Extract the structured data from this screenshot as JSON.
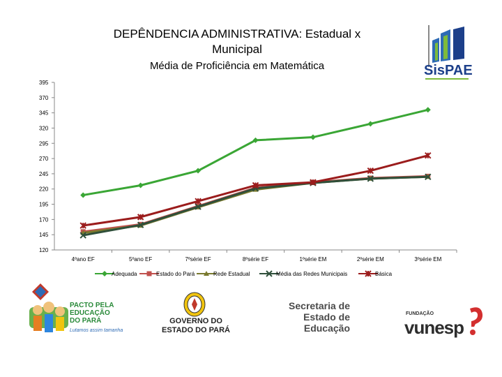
{
  "chart_data": {
    "type": "line",
    "title": "DEPÊNDENCIA ADMINISTRATIVA: Estadual x Municipal",
    "subtitle": "Média de Proficiência em Matemática",
    "categories": [
      "4ºano EF",
      "5ºano EF",
      "7ºsérie EF",
      "8ºsérie EF",
      "1ºsérie EM",
      "2ºsérie EM",
      "3ºsérie EM"
    ],
    "y_ticks": [
      120,
      145,
      170,
      195,
      220,
      245,
      270,
      295,
      320,
      345,
      370,
      395
    ],
    "ylim": [
      120,
      395
    ],
    "series": [
      {
        "name": "Adequada",
        "color": "#3aa635",
        "marker": "diamond",
        "values": [
          210,
          226,
          250,
          300,
          305,
          327,
          350
        ]
      },
      {
        "name": "Estado do Pará",
        "color": "#c0504d",
        "marker": "square",
        "values": [
          150,
          162,
          192,
          222,
          231,
          238,
          241
        ]
      },
      {
        "name": "Rede Estadual",
        "color": "#7a7a2e",
        "marker": "triangle",
        "values": [
          148,
          160,
          190,
          219,
          230,
          237,
          240
        ]
      },
      {
        "name": "Média das Redes Municipais",
        "color": "#2f4f3a",
        "marker": "x",
        "values": [
          144,
          161,
          191,
          221,
          230,
          237,
          240
        ]
      },
      {
        "name": "Básica",
        "color": "#9b1c1c",
        "marker": "star",
        "values": [
          160,
          174,
          200,
          226,
          231,
          250,
          275
        ]
      }
    ],
    "legend_position": "bottom"
  },
  "logos": {
    "sispae": "SisPAE",
    "pacto": [
      "PACTO PELA",
      "EDUCAÇÃO",
      "DO PARÁ"
    ],
    "pacto_tagline": "Lutamos assim tamanha",
    "governo": [
      "GOVERNO DO",
      "ESTADO DO PARÁ"
    ],
    "secretaria": [
      "Secretaria de",
      "Estado de",
      "Educação"
    ],
    "fundacao": "FUNDAÇÃO",
    "vunesp": "vunesp"
  }
}
